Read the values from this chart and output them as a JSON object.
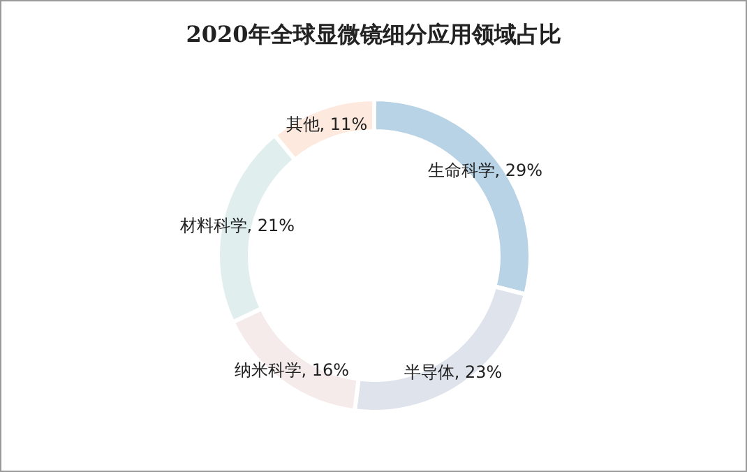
{
  "chart_data": {
    "type": "donut",
    "title": "2020年全球显微镜细分应用领域占比",
    "categories": [
      "生命科学",
      "半导体",
      "纳米科学",
      "材料科学",
      "其他"
    ],
    "values": [
      29,
      23,
      16,
      21,
      11
    ],
    "value_labels": [
      ", 29%",
      ", 23%",
      ", 16%",
      ", 21%",
      ", 11%"
    ],
    "colors": [
      "#b9d3e6",
      "#dfe3ec",
      "#f4ebea",
      "#e1eeee",
      "#fde9dd"
    ]
  }
}
